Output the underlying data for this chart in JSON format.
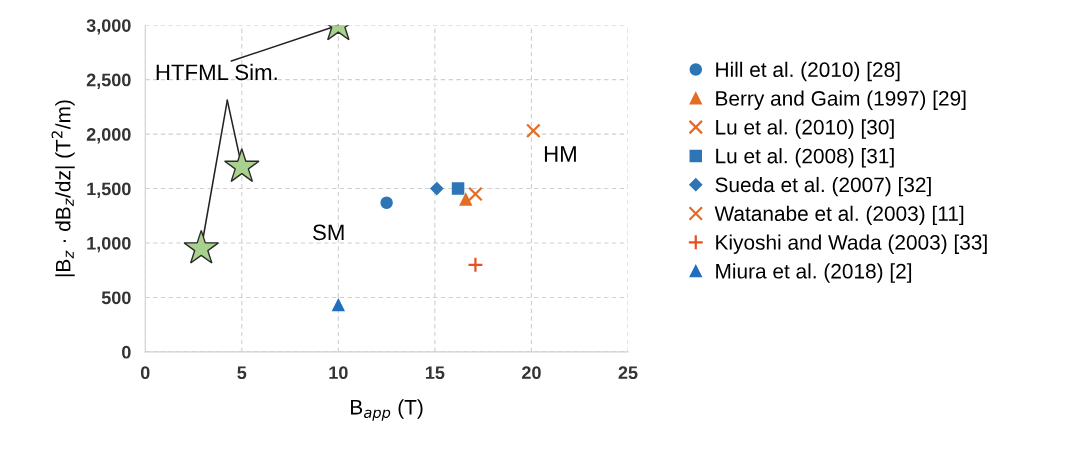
{
  "chart_data": {
    "type": "scatter",
    "xlabel": "B$_{app}$ (T)",
    "ylabel": "|B$_{z}$ · dB$_{z}$/dz| (T$^{2}$/m)",
    "xlim": [
      0,
      25
    ],
    "xticks": [
      0,
      5,
      10,
      15,
      20,
      25
    ],
    "ylim": [
      0,
      3000
    ],
    "yticks": [
      0,
      {
        "value": 500,
        "label": "500"
      },
      {
        "value": 1000,
        "label": "1,000"
      },
      {
        "value": 1500,
        "label": "1,500"
      },
      {
        "value": 2000,
        "label": "2,000"
      },
      {
        "value": 2500,
        "label": "2,500"
      },
      {
        "value": 3000,
        "label": "3,000"
      }
    ],
    "grid": true,
    "legend": "right",
    "annotations": [
      {
        "text": "HTFML Sim.",
        "x": 10.0,
        "y": 3000
      },
      "SM",
      "HM"
    ],
    "series": [
      {
        "name": "Hill et al. (2010) [28]",
        "color": "#2e75b6",
        "marker": "circle",
        "x": [
          12.5
        ],
        "values": [
          1370
        ]
      },
      {
        "name": "Berry and Gaim (1997) [29]",
        "color": "#e46c24",
        "marker": "triangle",
        "x": [
          16.6
        ],
        "values": [
          1400
        ]
      },
      {
        "name": "Lu et al. (2010) [30]",
        "color": "#e46c24",
        "marker": "cross",
        "x": [
          17.1
        ],
        "values": [
          1450
        ]
      },
      {
        "name": "Lu et al. (2008) [31]",
        "color": "#2e75b6",
        "marker": "square",
        "x": [
          16.2
        ],
        "values": [
          1500
        ]
      },
      {
        "name": "Sueda et al. (2007) [32]",
        "color": "#2e75b6",
        "marker": "diamond",
        "x": [
          15.1
        ],
        "values": [
          1500
        ]
      },
      {
        "name": "Watanabe et al. (2003) [11]",
        "color": "#e46c24",
        "marker": "cross",
        "x": [
          20.1
        ],
        "values": [
          2030
        ]
      },
      {
        "name": "Kiyoshi and Wada (2003) [33]",
        "color": "#e8501e",
        "marker": "plus",
        "x": [
          17.1
        ],
        "values": [
          800
        ]
      },
      {
        "name": "Miura et al. (2018) [2]",
        "color": "#1f6fbf",
        "marker": "triangle",
        "x": [
          10.0
        ],
        "values": [
          430
        ]
      },
      {
        "color": "#a9d18e",
        "marker": "star",
        "x": [
          2.9,
          5.0,
          10.0
        ],
        "values": [
          950,
          1700,
          3000
        ]
      }
    ]
  }
}
